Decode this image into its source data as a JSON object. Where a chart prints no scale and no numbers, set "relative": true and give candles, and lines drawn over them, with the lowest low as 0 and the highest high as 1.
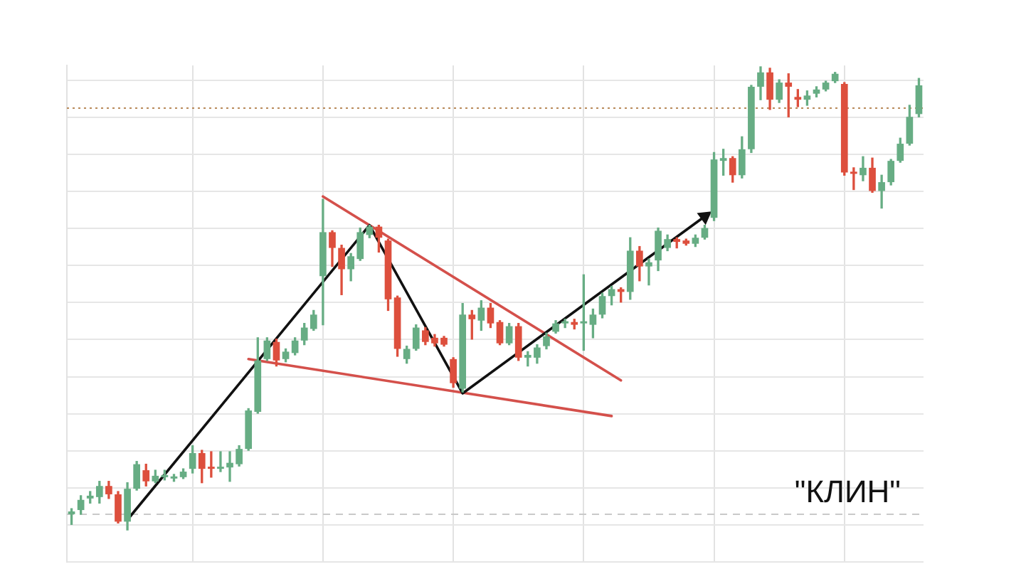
{
  "chart_data": {
    "type": "candlestick",
    "relative": true,
    "grid": true,
    "categories": [
      null,
      null,
      null,
      null,
      null,
      null,
      null,
      null,
      null,
      null,
      null,
      null,
      null,
      null,
      null,
      null,
      null,
      null,
      null,
      null,
      null,
      null,
      null,
      null,
      null,
      null,
      null,
      null,
      null,
      null,
      null,
      null,
      null,
      null,
      null,
      null,
      null,
      null,
      null,
      null,
      null,
      null,
      null,
      null,
      null,
      null,
      null,
      null,
      null,
      null,
      null,
      null,
      null,
      null,
      null,
      null,
      null,
      null,
      null,
      null,
      null,
      null,
      null,
      null,
      null,
      null,
      null,
      null,
      null,
      null,
      null,
      null,
      null,
      null,
      null,
      null,
      null,
      null,
      null,
      null,
      null,
      null,
      null,
      null,
      null,
      null,
      null,
      null,
      null,
      null,
      null,
      null
    ],
    "ohlc": [
      [
        0.034,
        0.046,
        0.012,
        0.04
      ],
      [
        0.043,
        0.074,
        0.034,
        0.065
      ],
      [
        0.068,
        0.083,
        0.058,
        0.074
      ],
      [
        0.071,
        0.105,
        0.058,
        0.095
      ],
      [
        0.095,
        0.105,
        0.068,
        0.077
      ],
      [
        0.077,
        0.083,
        0.015,
        0.018
      ],
      [
        0.018,
        0.102,
        0,
        0.089
      ],
      [
        0.089,
        0.148,
        0.086,
        0.142
      ],
      [
        0.129,
        0.142,
        0.095,
        0.105
      ],
      [
        0.105,
        0.129,
        0.102,
        0.117
      ],
      [
        0.114,
        0.129,
        0.108,
        0.117
      ],
      [
        0.111,
        0.12,
        0.105,
        0.114
      ],
      [
        0.114,
        0.132,
        0.111,
        0.126
      ],
      [
        0.132,
        0.182,
        0.123,
        0.166
      ],
      [
        0.166,
        0.172,
        0.102,
        0.132
      ],
      [
        0.135,
        0.169,
        0.114,
        0.132
      ],
      [
        0.132,
        0.169,
        0.126,
        0.135
      ],
      [
        0.135,
        0.169,
        0.105,
        0.145
      ],
      [
        0.142,
        0.182,
        0.138,
        0.175
      ],
      [
        0.175,
        0.262,
        0.172,
        0.258
      ],
      [
        0.255,
        0.415,
        0.252,
        0.366
      ],
      [
        0.369,
        0.415,
        0.366,
        0.409
      ],
      [
        0.406,
        0.412,
        0.354,
        0.366
      ],
      [
        0.369,
        0.391,
        0.363,
        0.385
      ],
      [
        0.382,
        0.415,
        0.378,
        0.409
      ],
      [
        0.409,
        0.446,
        0.4,
        0.437
      ],
      [
        0.434,
        0.474,
        0.431,
        0.465
      ],
      [
        0.548,
        0.714,
        0.443,
        0.643
      ],
      [
        0.643,
        0.646,
        0.569,
        0.609
      ],
      [
        0.609,
        0.615,
        0.508,
        0.563
      ],
      [
        0.563,
        0.597,
        0.538,
        0.591
      ],
      [
        0.585,
        0.652,
        0.582,
        0.643
      ],
      [
        0.637,
        0.658,
        0.631,
        0.655
      ],
      [
        0.655,
        0.658,
        0.6,
        0.631
      ],
      [
        0.625,
        0.628,
        0.474,
        0.498
      ],
      [
        0.502,
        0.505,
        0.375,
        0.391
      ],
      [
        0.369,
        0.397,
        0.36,
        0.391
      ],
      [
        0.391,
        0.443,
        0.388,
        0.437
      ],
      [
        0.431,
        0.437,
        0.4,
        0.406
      ],
      [
        0.415,
        0.422,
        0.397,
        0.403
      ],
      [
        0.415,
        0.418,
        0.397,
        0.4
      ],
      [
        0.369,
        0.372,
        0.308,
        0.317
      ],
      [
        0.305,
        0.489,
        0.298,
        0.465
      ],
      [
        0.465,
        0.474,
        0.412,
        0.455
      ],
      [
        0.452,
        0.495,
        0.431,
        0.48
      ],
      [
        0.48,
        0.489,
        0.437,
        0.446
      ],
      [
        0.449,
        0.452,
        0.4,
        0.403
      ],
      [
        0.403,
        0.446,
        0.4,
        0.44
      ],
      [
        0.44,
        0.446,
        0.366,
        0.372
      ],
      [
        0.372,
        0.385,
        0.354,
        0.378
      ],
      [
        0.372,
        0.4,
        0.36,
        0.394
      ],
      [
        0.397,
        0.425,
        0.391,
        0.418
      ],
      [
        0.428,
        0.452,
        0.425,
        0.446
      ],
      [
        0.446,
        0.455,
        0.437,
        0.449
      ],
      [
        0.449,
        0.455,
        0.434,
        0.443
      ],
      [
        0.446,
        0.551,
        0.388,
        0.449
      ],
      [
        0.443,
        0.477,
        0.415,
        0.465
      ],
      [
        0.465,
        0.511,
        0.458,
        0.505
      ],
      [
        0.505,
        0.526,
        0.486,
        0.52
      ],
      [
        0.52,
        0.523,
        0.492,
        0.514
      ],
      [
        0.514,
        0.631,
        0.498,
        0.603
      ],
      [
        0.603,
        0.612,
        0.538,
        0.569
      ],
      [
        0.569,
        0.585,
        0.529,
        0.578
      ],
      [
        0.582,
        0.652,
        0.56,
        0.646
      ],
      [
        0.609,
        0.637,
        0.603,
        0.628
      ],
      [
        0.628,
        0.631,
        0.609,
        0.622
      ],
      [
        0.625,
        0.628,
        0.615,
        0.618
      ],
      [
        0.618,
        0.637,
        0.612,
        0.631
      ],
      [
        0.631,
        0.658,
        0.628,
        0.652
      ],
      [
        0.674,
        0.815,
        0.668,
        0.8
      ],
      [
        0.797,
        0.822,
        0.766,
        0.803
      ],
      [
        0.803,
        0.806,
        0.751,
        0.766
      ],
      [
        0.766,
        0.849,
        0.76,
        0.822
      ],
      [
        0.822,
        0.96,
        0.815,
        0.957
      ],
      [
        0.957,
        1,
        0.929,
        0.988
      ],
      [
        0.988,
        0.997,
        0.908,
        0.929
      ],
      [
        0.929,
        0.972,
        0.923,
        0.966
      ],
      [
        0.966,
        0.985,
        0.892,
        0.957
      ],
      [
        0.935,
        0.951,
        0.914,
        0.929
      ],
      [
        0.929,
        0.948,
        0.917,
        0.938
      ],
      [
        0.942,
        0.957,
        0.935,
        0.951
      ],
      [
        0.951,
        0.969,
        0.948,
        0.966
      ],
      [
        0.969,
        0.988,
        0.966,
        0.985
      ],
      [
        0.963,
        0.966,
        0.766,
        0.772
      ],
      [
        0.772,
        0.782,
        0.735,
        0.769
      ],
      [
        0.766,
        0.806,
        0.754,
        0.782
      ],
      [
        0.782,
        0.803,
        0.729,
        0.732
      ],
      [
        0.732,
        0.766,
        0.695,
        0.751
      ],
      [
        0.751,
        0.8,
        0.745,
        0.797
      ],
      [
        0.797,
        0.846,
        0.794,
        0.834
      ],
      [
        0.834,
        0.917,
        0.831,
        0.892
      ],
      [
        0.898,
        0.975,
        0.892,
        0.96
      ]
    ],
    "colors": [
      "#67ad84",
      "#67ad84",
      "#67ad84",
      "#67ad84",
      "#dd4f3d",
      "#dd4f3d",
      "#67ad84",
      "#67ad84",
      "#dd4f3d",
      "#67ad84",
      "#67ad84",
      "#67ad84",
      "#67ad84",
      "#67ad84",
      "#dd4f3d",
      "#dd4f3d",
      "#67ad84",
      "#67ad84",
      "#67ad84",
      "#67ad84",
      "#67ad84",
      "#67ad84",
      "#dd4f3d",
      "#67ad84",
      "#67ad84",
      "#67ad84",
      "#67ad84",
      "#67ad84",
      "#dd4f3d",
      "#dd4f3d",
      "#67ad84",
      "#67ad84",
      "#67ad84",
      "#dd4f3d",
      "#dd4f3d",
      "#dd4f3d",
      "#67ad84",
      "#67ad84",
      "#dd4f3d",
      "#dd4f3d",
      "#dd4f3d",
      "#dd4f3d",
      "#67ad84",
      "#dd4f3d",
      "#67ad84",
      "#dd4f3d",
      "#dd4f3d",
      "#67ad84",
      "#dd4f3d",
      "#67ad84",
      "#67ad84",
      "#67ad84",
      "#67ad84",
      "#67ad84",
      "#dd4f3d",
      "#67ad84",
      "#67ad84",
      "#67ad84",
      "#67ad84",
      "#dd4f3d",
      "#67ad84",
      "#dd4f3d",
      "#67ad84",
      "#67ad84",
      "#67ad84",
      "#dd4f3d",
      "#dd4f3d",
      "#67ad84",
      "#67ad84",
      "#67ad84",
      "#67ad84",
      "#dd4f3d",
      "#67ad84",
      "#67ad84",
      "#67ad84",
      "#dd4f3d",
      "#67ad84",
      "#dd4f3d",
      "#dd4f3d",
      "#67ad84",
      "#67ad84",
      "#67ad84",
      "#67ad84",
      "#dd4f3d",
      "#dd4f3d",
      "#67ad84",
      "#dd4f3d",
      "#67ad84",
      "#67ad84",
      "#67ad84",
      "#67ad84",
      "#67ad84"
    ],
    "series": [
      {
        "type": "line",
        "color": "#111111",
        "values": [
          null,
          null,
          null,
          null,
          null,
          null,
          0.022,
          null,
          null,
          null,
          null,
          null,
          null,
          null,
          null,
          null,
          null,
          null,
          null,
          null,
          null,
          null,
          null,
          null,
          null,
          null,
          null,
          null,
          null,
          null,
          null,
          null,
          0.658,
          null,
          null,
          null,
          null,
          null,
          null,
          null,
          null,
          null,
          0.295,
          null,
          null,
          null,
          null,
          null,
          null,
          null,
          null,
          null,
          null,
          null,
          null,
          null,
          null,
          null,
          null,
          null,
          null,
          null,
          null,
          null,
          null,
          null,
          null,
          null,
          0.677,
          null,
          null,
          null,
          null,
          null,
          null,
          null,
          null,
          null,
          null,
          null,
          null,
          null,
          null,
          null,
          null,
          null,
          null,
          null,
          null,
          null,
          null,
          null
        ]
      },
      {
        "type": "line",
        "color": "#d4504b",
        "values": [
          null,
          null,
          null,
          null,
          null,
          null,
          null,
          null,
          null,
          null,
          null,
          null,
          null,
          null,
          null,
          null,
          null,
          null,
          null,
          null,
          null,
          null,
          null,
          null,
          null,
          null,
          null,
          0.72,
          null,
          null,
          null,
          null,
          null,
          null,
          null,
          null,
          null,
          null,
          null,
          null,
          null,
          null,
          null,
          null,
          null,
          null,
          null,
          null,
          null,
          null,
          null,
          null,
          null,
          null,
          null,
          null,
          null,
          null,
          null,
          0.323,
          null,
          null,
          null,
          null,
          null,
          null,
          null,
          null,
          null,
          null,
          null,
          null,
          null,
          null,
          null,
          null,
          null,
          null,
          null,
          null,
          null,
          null,
          null,
          null,
          null,
          null,
          null,
          null,
          null,
          null,
          null,
          null
        ]
      },
      {
        "type": "line",
        "color": "#d4504b",
        "values": [
          null,
          null,
          null,
          null,
          null,
          null,
          null,
          null,
          null,
          null,
          null,
          null,
          null,
          null,
          null,
          null,
          null,
          null,
          null,
          0.369,
          null,
          null,
          null,
          null,
          null,
          null,
          null,
          null,
          null,
          null,
          null,
          null,
          null,
          null,
          null,
          null,
          null,
          null,
          null,
          null,
          null,
          null,
          null,
          null,
          null,
          null,
          null,
          null,
          null,
          null,
          null,
          null,
          null,
          null,
          null,
          null,
          null,
          null,
          0.246,
          null,
          null,
          null,
          null,
          null,
          null,
          null,
          null,
          null,
          null,
          null,
          null,
          null,
          null,
          null,
          null,
          null,
          null,
          null,
          null,
          null,
          null,
          null,
          null,
          null,
          null,
          null,
          null,
          null,
          null,
          null,
          null,
          null
        ]
      }
    ],
    "ref_lines": [
      {
        "axis": "y",
        "value": 0.911,
        "color": "#b98a5a",
        "line_style": "dotted"
      },
      {
        "axis": "y",
        "value": 0.034,
        "color": "#c9c9c9",
        "line_style": "dashed"
      }
    ],
    "annotations": [
      "\"КЛИН\""
    ]
  }
}
